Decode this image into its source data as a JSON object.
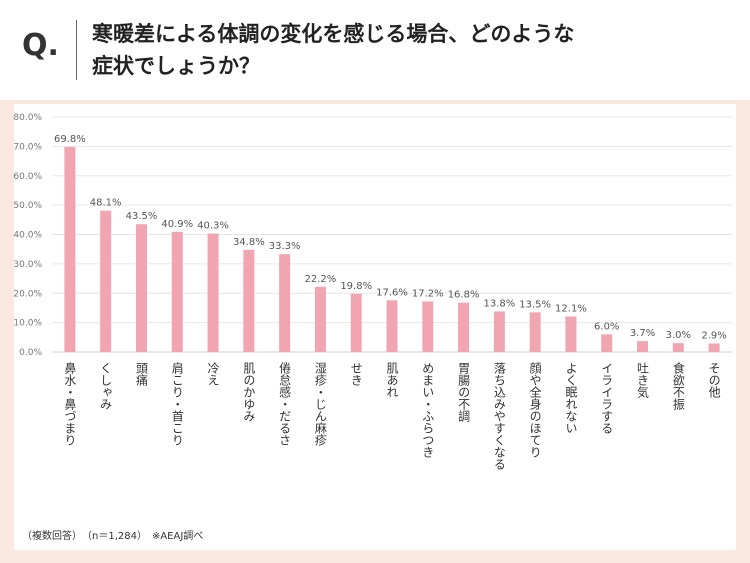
{
  "header": {
    "q_label": "Q.",
    "question_line1": "寒暖差による体調の変化を感じる場合、どのような",
    "question_line2": "症状でしょうか？"
  },
  "footnote": "（複数回答）　（n＝1,284）　※AEAJ調べ",
  "colors": {
    "bar": "#f0a5b1",
    "background": "#fbe9df",
    "panel": "#ffffff",
    "gridline": "#e6e6e6"
  },
  "chart_data": {
    "type": "bar",
    "title": "",
    "xlabel": "",
    "ylabel": "",
    "ylim": [
      0,
      80
    ],
    "yticks": [
      "0.0%",
      "10.0%",
      "20.0%",
      "30.0%",
      "40.0%",
      "50.0%",
      "60.0%",
      "70.0%",
      "80.0%"
    ],
    "grid": true,
    "legend": "none",
    "categories": [
      "鼻水・鼻づまり",
      "くしゃみ",
      "頭痛",
      "肩こり・首こり",
      "冷え",
      "肌のかゆみ",
      "倦怠感・だるさ",
      "湿疹・じん麻疹",
      "せき",
      "肌あれ",
      "めまい・ふらつき",
      "胃腸の不調",
      "落ち込みやすくなる",
      "顔や全身のほてり",
      "よく眠れない",
      "イライラする",
      "吐き気",
      "食欲不振",
      "その他"
    ],
    "values": [
      69.8,
      48.1,
      43.5,
      40.9,
      40.3,
      34.8,
      33.3,
      22.2,
      19.8,
      17.6,
      17.2,
      16.8,
      13.8,
      13.5,
      12.1,
      6.0,
      3.7,
      3.0,
      2.9
    ],
    "value_labels": [
      "69.8%",
      "48.1%",
      "43.5%",
      "40.9%",
      "40.3%",
      "34.8%",
      "33.3%",
      "22.2%",
      "19.8%",
      "17.6%",
      "17.2%",
      "16.8%",
      "13.8%",
      "13.5%",
      "12.1%",
      "6.0%",
      "3.7%",
      "3.0%",
      "2.9%"
    ]
  }
}
